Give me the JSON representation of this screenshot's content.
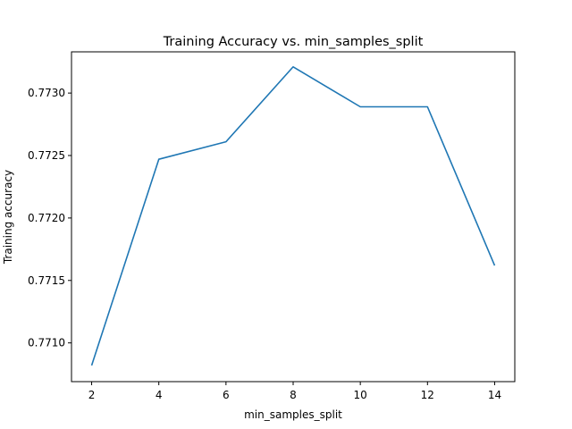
{
  "chart_data": {
    "type": "line",
    "title": "Training Accuracy vs. min_samples_split",
    "xlabel": "min_samples_split",
    "ylabel": "Training accuracy",
    "x": [
      2,
      4,
      6,
      8,
      10,
      12,
      14
    ],
    "series": [
      {
        "values": [
          0.77082,
          0.77247,
          0.77261,
          0.77321,
          0.77289,
          0.77289,
          0.77162
        ],
        "color": "#1f77b4"
      }
    ],
    "xticks": [
      2,
      4,
      6,
      8,
      10,
      12,
      14
    ],
    "xtick_labels": [
      "2",
      "4",
      "6",
      "8",
      "10",
      "12",
      "14"
    ],
    "yticks": [
      0.771,
      0.7715,
      0.772,
      0.7725,
      0.773
    ],
    "ytick_labels": [
      "0.7710",
      "0.7715",
      "0.7720",
      "0.7725",
      "0.7730"
    ],
    "xlim": [
      1.4,
      14.6
    ],
    "ylim": [
      0.77069,
      0.77333
    ],
    "grid": false,
    "legend": false
  }
}
